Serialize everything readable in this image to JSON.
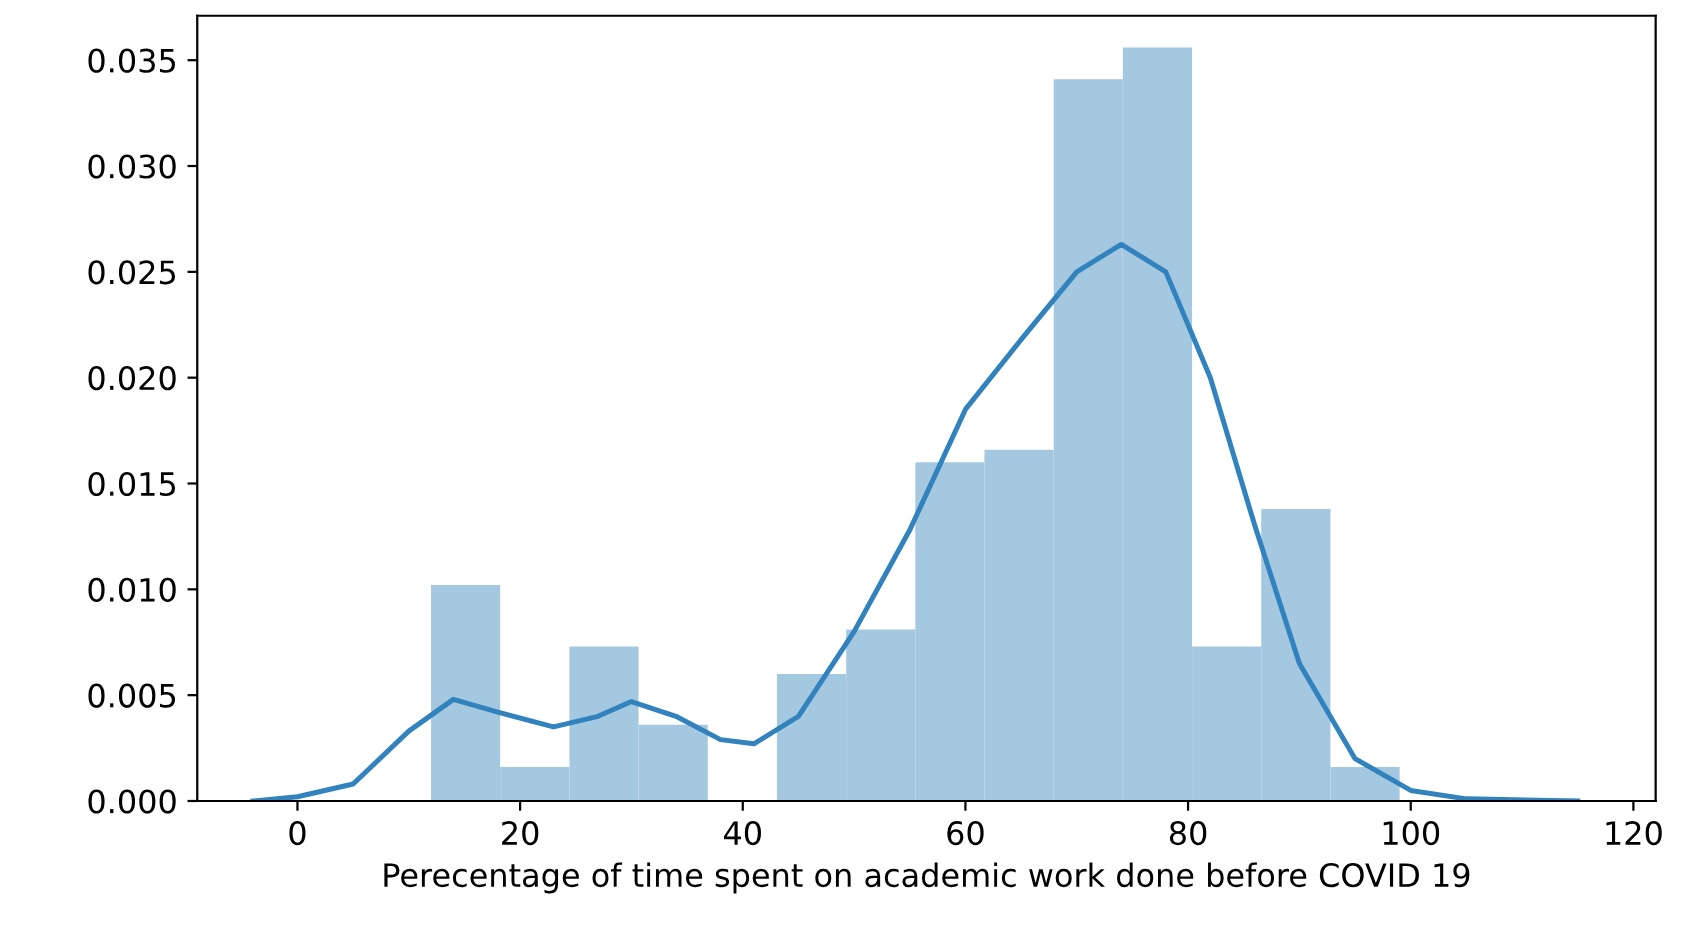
{
  "chart_data": {
    "type": "histogram",
    "xlabel": "Perecentage of time spent on academic work done before COVID 19",
    "bins": [
      12,
      18.21,
      24.43,
      30.64,
      36.86,
      43.07,
      49.29,
      55.5,
      61.71,
      67.93,
      74.14,
      80.36,
      86.57,
      92.79,
      99
    ],
    "values": [
      0.0102,
      0.0016,
      0.0073,
      0.0036,
      0,
      0.006,
      0.0081,
      0.016,
      0.0166,
      0.0341,
      0.0356,
      0.0073,
      0.0138,
      0.0016
    ],
    "color": "#a5c8e1",
    "series": [
      {
        "type": "line",
        "color": "#3182bd",
        "x": [
          -4,
          0,
          5,
          10,
          14,
          18,
          23,
          27,
          30,
          34,
          38,
          41,
          45,
          50,
          55,
          60,
          65,
          70,
          74,
          78,
          82,
          86,
          90,
          95,
          100,
          105,
          115
        ],
        "values": [
          0,
          0.0002,
          0.0008,
          0.0033,
          0.0048,
          0.0042,
          0.0035,
          0.004,
          0.0047,
          0.004,
          0.0029,
          0.0027,
          0.004,
          0.008,
          0.0128,
          0.0185,
          0.0218,
          0.025,
          0.0263,
          0.025,
          0.02,
          0.013,
          0.0065,
          0.002,
          0.0005,
          0.0001,
          0
        ]
      }
    ],
    "xlim": [
      -9,
      122
    ],
    "ylim": [
      0,
      0.0371
    ],
    "xticks": [
      0,
      20,
      40,
      60,
      80,
      100,
      120
    ],
    "yticks": [
      {
        "value": 0,
        "label": "0.000"
      },
      {
        "value": 0.005,
        "label": "0.005"
      },
      {
        "value": 0.01,
        "label": "0.010"
      },
      {
        "value": 0.015,
        "label": "0.015"
      },
      {
        "value": 0.02,
        "label": "0.020"
      },
      {
        "value": 0.025,
        "label": "0.025"
      },
      {
        "value": 0.03,
        "label": "0.030"
      },
      {
        "value": 0.035,
        "label": "0.035"
      }
    ],
    "grid": false
  }
}
